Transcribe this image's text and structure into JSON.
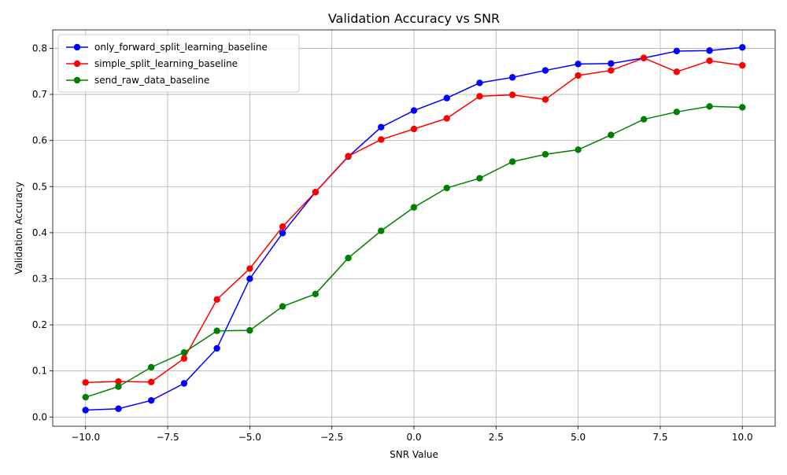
{
  "chart_data": {
    "type": "line",
    "title": "Validation Accuracy vs SNR",
    "xlabel": "SNR Value",
    "ylabel": "Validation Accuracy",
    "xlim": [
      -11,
      11
    ],
    "ylim": [
      -0.02,
      0.84
    ],
    "xticks": [
      -10.0,
      -7.5,
      -5.0,
      -2.5,
      0.0,
      2.5,
      5.0,
      7.5,
      10.0
    ],
    "xtick_labels": [
      "−10.0",
      "−7.5",
      "−5.0",
      "−2.5",
      "0.0",
      "2.5",
      "5.0",
      "7.5",
      "10.0"
    ],
    "yticks": [
      0.0,
      0.1,
      0.2,
      0.3,
      0.4,
      0.5,
      0.6,
      0.7,
      0.8
    ],
    "ytick_labels": [
      "0.0",
      "0.1",
      "0.2",
      "0.3",
      "0.4",
      "0.5",
      "0.6",
      "0.7",
      "0.8"
    ],
    "grid": true,
    "legend_position": "upper-left",
    "x": [
      -10,
      -9,
      -8,
      -7,
      -6,
      -5,
      -4,
      -3,
      -2,
      -1,
      0,
      1,
      2,
      3,
      4,
      5,
      6,
      7,
      8,
      9,
      10
    ],
    "series": [
      {
        "name": "only_forward_split_learning_baseline",
        "color": "#0000ff",
        "marker": "circle",
        "values": [
          0.015,
          0.018,
          0.036,
          0.073,
          0.149,
          0.3,
          0.399,
          0.488,
          0.565,
          0.629,
          0.665,
          0.692,
          0.725,
          0.737,
          0.752,
          0.766,
          0.767,
          0.779,
          0.794,
          0.795,
          0.802
        ]
      },
      {
        "name": "simple_split_learning_baseline",
        "color": "#ff0000",
        "marker": "circle",
        "values": [
          0.075,
          0.077,
          0.076,
          0.127,
          0.255,
          0.322,
          0.413,
          0.488,
          0.566,
          0.602,
          0.625,
          0.648,
          0.696,
          0.699,
          0.689,
          0.741,
          0.752,
          0.779,
          0.749,
          0.773,
          0.763
        ]
      },
      {
        "name": "send_raw_data_baseline",
        "color": "#008000",
        "marker": "circle",
        "values": [
          0.043,
          0.066,
          0.108,
          0.14,
          0.187,
          0.188,
          0.24,
          0.267,
          0.345,
          0.404,
          0.455,
          0.497,
          0.518,
          0.554,
          0.57,
          0.58,
          0.612,
          0.646,
          0.662,
          0.674,
          0.672
        ]
      }
    ]
  }
}
